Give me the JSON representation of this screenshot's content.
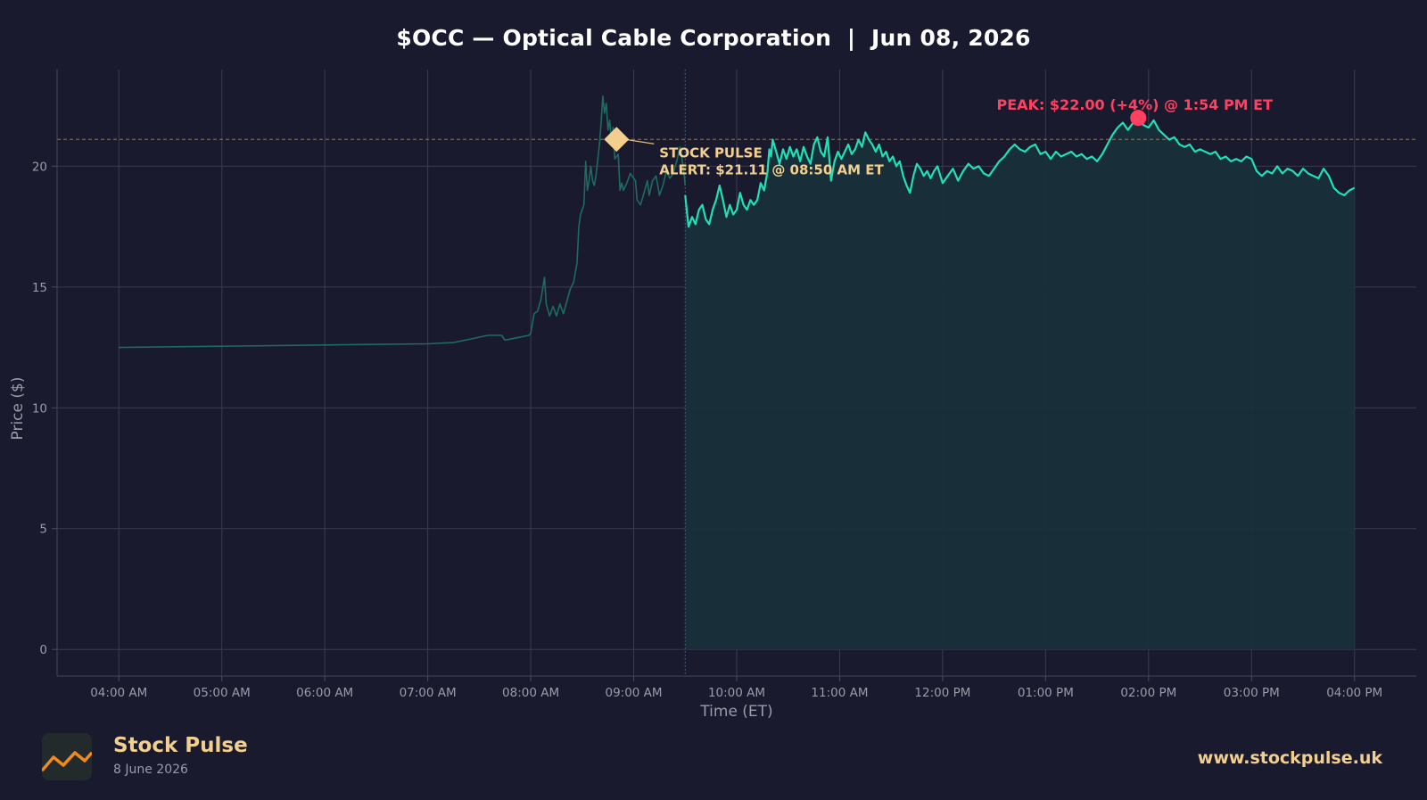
{
  "chart_data": {
    "type": "line",
    "title": "$OCC — Optical Cable Corporation  |  Jun 08, 2026",
    "xlabel": "Time (ET)",
    "ylabel": "Price ($)",
    "x_ticks": [
      "04:00 AM",
      "05:00 AM",
      "06:00 AM",
      "07:00 AM",
      "08:00 AM",
      "09:00 AM",
      "10:00 AM",
      "11:00 AM",
      "12:00 PM",
      "01:00 PM",
      "02:00 PM",
      "03:00 PM",
      "04:00 PM"
    ],
    "y_ticks": [
      0,
      5,
      10,
      15,
      20
    ],
    "xlim": [
      "03:24 AM",
      "04:36 PM"
    ],
    "ylim": [
      -1.1,
      24
    ],
    "grid": true,
    "market_open": "09:30 AM",
    "series": [
      {
        "session": "premarket",
        "points": [
          [
            "04:00 AM",
            12.5
          ],
          [
            "05:00 AM",
            12.55
          ],
          [
            "06:00 AM",
            12.6
          ],
          [
            "07:00 AM",
            12.65
          ],
          [
            "07:15 AM",
            12.7
          ],
          [
            "07:25 AM",
            12.85
          ],
          [
            "07:35 AM",
            13.0
          ],
          [
            "07:43 AM",
            13.0
          ],
          [
            "07:45 AM",
            12.8
          ],
          [
            "07:52 AM",
            12.9
          ],
          [
            "07:59 AM",
            13.0
          ],
          [
            "08:00 AM",
            13.1
          ],
          [
            "08:02 AM",
            13.9
          ],
          [
            "08:04 AM",
            14.0
          ],
          [
            "08:06 AM",
            14.5
          ],
          [
            "08:08 AM",
            15.4
          ],
          [
            "08:09 AM",
            14.3
          ],
          [
            "08:11 AM",
            13.8
          ],
          [
            "08:13 AM",
            14.2
          ],
          [
            "08:15 AM",
            13.8
          ],
          [
            "08:17 AM",
            14.3
          ],
          [
            "08:19 AM",
            13.9
          ],
          [
            "08:21 AM",
            14.4
          ],
          [
            "08:23 AM",
            14.9
          ],
          [
            "08:25 AM",
            15.2
          ],
          [
            "08:27 AM",
            16.0
          ],
          [
            "08:28 AM",
            17.5
          ],
          [
            "08:29 AM",
            18.0
          ],
          [
            "08:31 AM",
            18.4
          ],
          [
            "08:32 AM",
            20.2
          ],
          [
            "08:33 AM",
            19.0
          ],
          [
            "08:34 AM",
            19.4
          ],
          [
            "08:35 AM",
            20.0
          ],
          [
            "08:36 AM",
            19.4
          ],
          [
            "08:37 AM",
            19.2
          ],
          [
            "08:38 AM",
            19.6
          ],
          [
            "08:40 AM",
            20.9
          ],
          [
            "08:41 AM",
            21.8
          ],
          [
            "08:42 AM",
            22.9
          ],
          [
            "08:43 AM",
            22.2
          ],
          [
            "08:44 AM",
            22.6
          ],
          [
            "08:45 AM",
            21.5
          ],
          [
            "08:46 AM",
            21.9
          ],
          [
            "08:47 AM",
            21.0
          ],
          [
            "08:48 AM",
            21.6
          ],
          [
            "08:49 AM",
            20.3
          ],
          [
            "08:51 AM",
            20.5
          ],
          [
            "08:52 AM",
            19.0
          ],
          [
            "08:53 AM",
            19.3
          ],
          [
            "08:54 AM",
            19.0
          ],
          [
            "08:56 AM",
            19.3
          ],
          [
            "08:58 AM",
            19.7
          ],
          [
            "09:00 AM",
            19.5
          ],
          [
            "09:01 AM",
            19.4
          ],
          [
            "09:02 AM",
            18.6
          ],
          [
            "09:04 AM",
            18.4
          ],
          [
            "09:06 AM",
            18.9
          ],
          [
            "09:08 AM",
            19.4
          ],
          [
            "09:09 AM",
            18.8
          ],
          [
            "09:11 AM",
            19.4
          ],
          [
            "09:13 AM",
            19.6
          ],
          [
            "09:15 AM",
            18.8
          ],
          [
            "09:17 AM",
            19.2
          ],
          [
            "09:19 AM",
            19.8
          ],
          [
            "09:21 AM",
            19.5
          ],
          [
            "09:23 AM",
            19.7
          ],
          [
            "09:25 AM",
            20.2
          ],
          [
            "09:27 AM",
            20.8
          ],
          [
            "09:29 AM",
            19.9
          ],
          [
            "09:30 AM",
            19.2
          ]
        ]
      },
      {
        "session": "regular",
        "points": [
          [
            "09:30 AM",
            18.8
          ],
          [
            "09:31 AM",
            18.1
          ],
          [
            "09:32 AM",
            17.5
          ],
          [
            "09:34 AM",
            17.9
          ],
          [
            "09:36 AM",
            17.6
          ],
          [
            "09:38 AM",
            18.2
          ],
          [
            "09:40 AM",
            18.4
          ],
          [
            "09:42 AM",
            17.8
          ],
          [
            "09:44 AM",
            17.6
          ],
          [
            "09:46 AM",
            18.2
          ],
          [
            "09:48 AM",
            18.6
          ],
          [
            "09:50 AM",
            19.2
          ],
          [
            "09:52 AM",
            18.6
          ],
          [
            "09:54 AM",
            17.9
          ],
          [
            "09:56 AM",
            18.4
          ],
          [
            "09:58 AM",
            18.0
          ],
          [
            "10:00 AM",
            18.2
          ],
          [
            "10:02 AM",
            18.9
          ],
          [
            "10:04 AM",
            18.4
          ],
          [
            "10:06 AM",
            18.2
          ],
          [
            "10:08 AM",
            18.6
          ],
          [
            "10:10 AM",
            18.4
          ],
          [
            "10:12 AM",
            18.6
          ],
          [
            "10:14 AM",
            19.3
          ],
          [
            "10:16 AM",
            19.0
          ],
          [
            "10:18 AM",
            19.8
          ],
          [
            "10:19 AM",
            20.7
          ],
          [
            "10:20 AM",
            20.4
          ],
          [
            "10:21 AM",
            21.1
          ],
          [
            "10:23 AM",
            20.6
          ],
          [
            "10:25 AM",
            20.1
          ],
          [
            "10:27 AM",
            20.7
          ],
          [
            "10:29 AM",
            20.3
          ],
          [
            "10:31 AM",
            20.8
          ],
          [
            "10:33 AM",
            20.4
          ],
          [
            "10:35 AM",
            20.7
          ],
          [
            "10:37 AM",
            20.2
          ],
          [
            "10:39 AM",
            20.8
          ],
          [
            "10:41 AM",
            20.4
          ],
          [
            "10:43 AM",
            20.1
          ],
          [
            "10:45 AM",
            20.9
          ],
          [
            "10:47 AM",
            21.2
          ],
          [
            "10:49 AM",
            20.6
          ],
          [
            "10:51 AM",
            20.4
          ],
          [
            "10:53 AM",
            21.2
          ],
          [
            "10:55 AM",
            19.4
          ],
          [
            "10:57 AM",
            20.2
          ],
          [
            "10:59 AM",
            20.6
          ],
          [
            "11:01 AM",
            20.3
          ],
          [
            "11:03 AM",
            20.6
          ],
          [
            "11:05 AM",
            20.9
          ],
          [
            "11:07 AM",
            20.5
          ],
          [
            "11:09 AM",
            20.7
          ],
          [
            "11:11 AM",
            21.1
          ],
          [
            "11:13 AM",
            20.8
          ],
          [
            "11:15 AM",
            21.4
          ],
          [
            "11:17 AM",
            21.1
          ],
          [
            "11:19 AM",
            20.9
          ],
          [
            "11:21 AM",
            20.6
          ],
          [
            "11:23 AM",
            20.9
          ],
          [
            "11:25 AM",
            20.4
          ],
          [
            "11:27 AM",
            20.6
          ],
          [
            "11:29 AM",
            20.2
          ],
          [
            "11:31 AM",
            20.4
          ],
          [
            "11:33 AM",
            20.0
          ],
          [
            "11:35 AM",
            20.2
          ],
          [
            "11:37 AM",
            19.6
          ],
          [
            "11:39 AM",
            19.2
          ],
          [
            "11:41 AM",
            18.9
          ],
          [
            "11:43 AM",
            19.6
          ],
          [
            "11:45 AM",
            20.1
          ],
          [
            "11:47 AM",
            19.9
          ],
          [
            "11:49 AM",
            19.6
          ],
          [
            "11:51 AM",
            19.8
          ],
          [
            "11:53 AM",
            19.5
          ],
          [
            "11:55 AM",
            19.8
          ],
          [
            "11:57 AM",
            20.0
          ],
          [
            "12:00 PM",
            19.3
          ],
          [
            "12:03 PM",
            19.6
          ],
          [
            "12:06 PM",
            19.9
          ],
          [
            "12:09 PM",
            19.4
          ],
          [
            "12:12 PM",
            19.8
          ],
          [
            "12:15 PM",
            20.1
          ],
          [
            "12:18 PM",
            19.9
          ],
          [
            "12:21 PM",
            20.0
          ],
          [
            "12:24 PM",
            19.7
          ],
          [
            "12:27 PM",
            19.6
          ],
          [
            "12:30 PM",
            19.9
          ],
          [
            "12:33 PM",
            20.2
          ],
          [
            "12:36 PM",
            20.4
          ],
          [
            "12:39 PM",
            20.7
          ],
          [
            "12:42 PM",
            20.9
          ],
          [
            "12:45 PM",
            20.7
          ],
          [
            "12:48 PM",
            20.6
          ],
          [
            "12:51 PM",
            20.8
          ],
          [
            "12:54 PM",
            20.9
          ],
          [
            "12:57 PM",
            20.5
          ],
          [
            "01:00 PM",
            20.6
          ],
          [
            "01:03 PM",
            20.3
          ],
          [
            "01:06 PM",
            20.6
          ],
          [
            "01:09 PM",
            20.4
          ],
          [
            "01:12 PM",
            20.5
          ],
          [
            "01:15 PM",
            20.6
          ],
          [
            "01:18 PM",
            20.4
          ],
          [
            "01:21 PM",
            20.5
          ],
          [
            "01:24 PM",
            20.3
          ],
          [
            "01:27 PM",
            20.4
          ],
          [
            "01:30 PM",
            20.2
          ],
          [
            "01:33 PM",
            20.5
          ],
          [
            "01:36 PM",
            20.9
          ],
          [
            "01:39 PM",
            21.3
          ],
          [
            "01:42 PM",
            21.6
          ],
          [
            "01:45 PM",
            21.8
          ],
          [
            "01:48 PM",
            21.5
          ],
          [
            "01:51 PM",
            21.8
          ],
          [
            "01:54 PM",
            22.0
          ],
          [
            "01:57 PM",
            21.7
          ],
          [
            "02:00 PM",
            21.6
          ],
          [
            "02:03 PM",
            21.9
          ],
          [
            "02:06 PM",
            21.5
          ],
          [
            "02:09 PM",
            21.3
          ],
          [
            "02:12 PM",
            21.1
          ],
          [
            "02:15 PM",
            21.2
          ],
          [
            "02:18 PM",
            20.9
          ],
          [
            "02:21 PM",
            20.8
          ],
          [
            "02:24 PM",
            20.9
          ],
          [
            "02:27 PM",
            20.6
          ],
          [
            "02:30 PM",
            20.7
          ],
          [
            "02:33 PM",
            20.6
          ],
          [
            "02:36 PM",
            20.5
          ],
          [
            "02:39 PM",
            20.6
          ],
          [
            "02:42 PM",
            20.3
          ],
          [
            "02:45 PM",
            20.4
          ],
          [
            "02:48 PM",
            20.2
          ],
          [
            "02:51 PM",
            20.3
          ],
          [
            "02:54 PM",
            20.2
          ],
          [
            "02:57 PM",
            20.4
          ],
          [
            "03:00 PM",
            20.3
          ],
          [
            "03:03 PM",
            19.8
          ],
          [
            "03:06 PM",
            19.6
          ],
          [
            "03:09 PM",
            19.8
          ],
          [
            "03:12 PM",
            19.7
          ],
          [
            "03:15 PM",
            20.0
          ],
          [
            "03:18 PM",
            19.7
          ],
          [
            "03:21 PM",
            19.9
          ],
          [
            "03:24 PM",
            19.8
          ],
          [
            "03:27 PM",
            19.6
          ],
          [
            "03:30 PM",
            19.9
          ],
          [
            "03:33 PM",
            19.7
          ],
          [
            "03:36 PM",
            19.6
          ],
          [
            "03:39 PM",
            19.5
          ],
          [
            "03:42 PM",
            19.9
          ],
          [
            "03:45 PM",
            19.6
          ],
          [
            "03:48 PM",
            19.1
          ],
          [
            "03:51 PM",
            18.9
          ],
          [
            "03:54 PM",
            18.8
          ],
          [
            "03:57 PM",
            19.0
          ],
          [
            "04:00 PM",
            19.1
          ]
        ]
      }
    ],
    "alert": {
      "time": "08:50 AM",
      "price": 21.11,
      "label_line1": "STOCK PULSE",
      "label_line2": "ALERT: $21.11 @ 08:50 AM ET"
    },
    "peak": {
      "time": "01:54 PM",
      "price": 22.0,
      "label": "PEAK: $22.00 (+4%) @ 1:54 PM ET"
    },
    "colors": {
      "background": "#1a1a2e",
      "regular_line": "#1fe0b7",
      "premarket_line": "#1e6b5f",
      "fill": "#18303b",
      "alert": "#f2cf8e",
      "peak": "#ff4060",
      "grid": "#3a3b52",
      "tick_text": "#9a9aa8"
    }
  },
  "footer": {
    "brand_name": "Stock Pulse",
    "brand_date": "8 June 2026",
    "website": "www.stockpulse.uk",
    "logo_icon": "trend-line-logo-icon"
  }
}
